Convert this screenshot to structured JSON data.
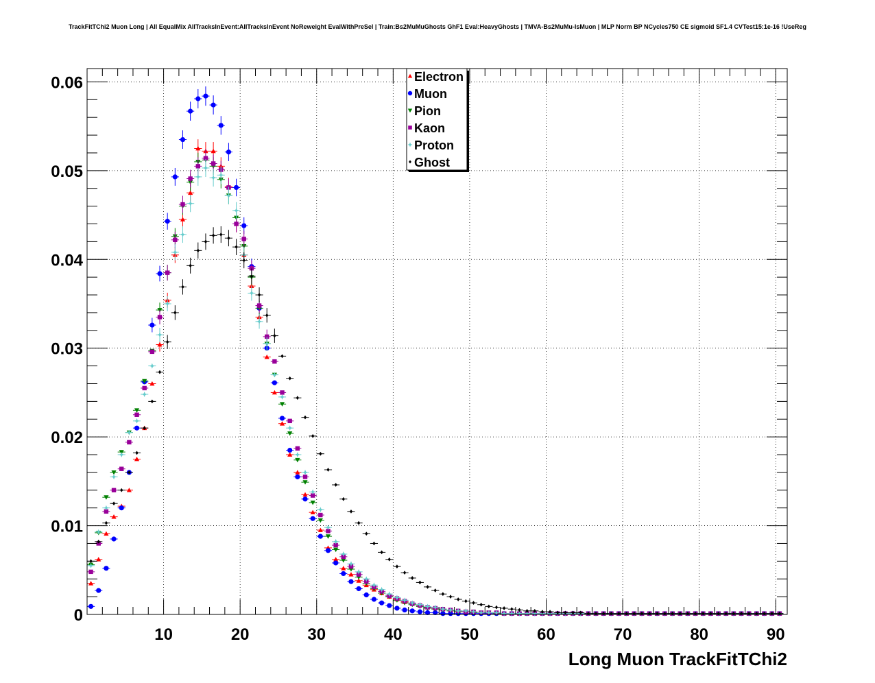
{
  "chart_data": {
    "type": "scatter",
    "title": "TrackFitTChi2 Muon Long | All EqualMix AllTracksInEvent:AllTracksInEvent NoReweight EvalWithPreSel | Train:Bs2MuMuGhosts GhF1 Eval:HeavyGhosts | TMVA-Bs2MuMu-IsMuon | MLP Norm BP NCycles750 CE sigmoid SF1.4 CVTest15:1e-16 !UseReg",
    "xlabel": "Long Muon TrackFitTChi2",
    "ylabel": "",
    "xlim": [
      0,
      91.5
    ],
    "ylim": [
      0,
      0.0615
    ],
    "xticks": [
      10,
      20,
      30,
      40,
      50,
      60,
      70,
      80,
      90
    ],
    "yticks": [
      0,
      0.01,
      0.02,
      0.03,
      0.04,
      0.05,
      0.06
    ],
    "xtick_labels": [
      "10",
      "20",
      "30",
      "40",
      "50",
      "60",
      "70",
      "80",
      "90"
    ],
    "ytick_labels": [
      "0",
      "0.01",
      "0.02",
      "0.03",
      "0.04",
      "0.05",
      "0.06"
    ],
    "grid": true,
    "legend_position": "top-center",
    "bin_width": 1,
    "series": [
      {
        "name": "Electron",
        "marker": "triangle-up",
        "color": "#ff0000",
        "values": [
          0.0035,
          0.0062,
          0.0091,
          0.011,
          0.0122,
          0.014,
          0.0175,
          0.021,
          0.026,
          0.0304,
          0.0354,
          0.0405,
          0.0445,
          0.0475,
          0.0525,
          0.0522,
          0.0522,
          0.0505,
          0.0482,
          0.044,
          0.0405,
          0.037,
          0.0335,
          0.029,
          0.025,
          0.0215,
          0.018,
          0.016,
          0.0135,
          0.0115,
          0.0095,
          0.0075,
          0.0062,
          0.0052,
          0.0045,
          0.0038,
          0.0033,
          0.0028,
          0.0024,
          0.002,
          0.0017,
          0.0014,
          0.0012,
          0.001,
          0.0008,
          0.0007,
          0.0006,
          0.0005,
          0.0004,
          0.0003,
          0.0003,
          0.0002,
          0.0002,
          0.0002,
          0.0001,
          0.0001,
          0.0001,
          0.0001,
          0.0001,
          0.0001,
          0.0001,
          0.0001,
          0.0001,
          0.0001,
          0.0001,
          0.0001,
          0.0001,
          0.0001,
          0.0001,
          0.0001,
          0.0001,
          0.0001,
          0.0001,
          0.0001,
          0.0001,
          0.0001,
          0.0001,
          0.0001,
          0.0001,
          0.0001,
          0.0001,
          0.0001,
          0.0001,
          0.0001,
          0.0001,
          0.0001,
          0.0001,
          0.0001,
          0.0001,
          0.0001,
          0.0001
        ]
      },
      {
        "name": "Muon",
        "marker": "circle",
        "color": "#0000ff",
        "values": [
          0.0009,
          0.0027,
          0.0052,
          0.0085,
          0.012,
          0.016,
          0.021,
          0.0262,
          0.0326,
          0.0384,
          0.0443,
          0.0493,
          0.0535,
          0.0567,
          0.0581,
          0.0584,
          0.0574,
          0.0551,
          0.0521,
          0.0481,
          0.0438,
          0.0392,
          0.0345,
          0.03,
          0.0261,
          0.0221,
          0.0185,
          0.0155,
          0.013,
          0.0108,
          0.0088,
          0.0072,
          0.0058,
          0.0046,
          0.0037,
          0.0029,
          0.0022,
          0.0017,
          0.0013,
          0.001,
          0.0007,
          0.0005,
          0.0004,
          0.0003,
          0.0002,
          0.0002,
          0.0001,
          0.0001,
          0.0001,
          0.0001,
          0.0001,
          0.0001,
          0.0001,
          0.0001,
          0.0001,
          0.0001,
          0.0001,
          0.0001,
          0.0001,
          0.0001,
          0.0001,
          0.0001,
          0.0001,
          0.0001,
          0.0001,
          0.0001,
          0.0001,
          0.0001,
          0.0001,
          0.0001,
          0.0001,
          0.0001,
          0.0001,
          0.0001,
          0.0001,
          0.0001,
          0.0001,
          0.0001,
          0.0001,
          0.0001,
          0.0001,
          0.0001,
          0.0001,
          0.0001,
          0.0001,
          0.0001,
          0.0001,
          0.0001,
          0.0001,
          0.0001,
          0.0001
        ]
      },
      {
        "name": "Pion",
        "marker": "triangle-down",
        "color": "#008000",
        "values": [
          0.0056,
          0.0092,
          0.0132,
          0.016,
          0.0183,
          0.0205,
          0.023,
          0.0263,
          0.0297,
          0.0343,
          0.0385,
          0.0426,
          0.046,
          0.0487,
          0.051,
          0.0512,
          0.0505,
          0.049,
          0.0472,
          0.0447,
          0.0415,
          0.038,
          0.0345,
          0.0305,
          0.027,
          0.0237,
          0.0204,
          0.0174,
          0.0149,
          0.0126,
          0.0106,
          0.0088,
          0.0073,
          0.0061,
          0.0051,
          0.0042,
          0.0035,
          0.0029,
          0.0024,
          0.002,
          0.0016,
          0.0013,
          0.0011,
          0.0009,
          0.0007,
          0.0006,
          0.0005,
          0.0004,
          0.0003,
          0.0003,
          0.0002,
          0.0002,
          0.0002,
          0.0001,
          0.0001,
          0.0001,
          0.0001,
          0.0001,
          0.0001,
          0.0001,
          0.0001,
          0.0001,
          0.0001,
          0.0001,
          0.0001,
          0.0001,
          0.0001,
          0.0001,
          0.0001,
          0.0001,
          0.0001,
          0.0001,
          0.0001,
          0.0001,
          0.0001,
          0.0001,
          0.0001,
          0.0001,
          0.0001,
          0.0001,
          0.0001,
          0.0001,
          0.0001,
          0.0001,
          0.0001,
          0.0001,
          0.0001,
          0.0001,
          0.0001,
          0.0001,
          0.0001
        ]
      },
      {
        "name": "Kaon",
        "marker": "square",
        "color": "#990099",
        "values": [
          0.0048,
          0.008,
          0.0116,
          0.014,
          0.0164,
          0.0194,
          0.0225,
          0.0255,
          0.0296,
          0.0335,
          0.0385,
          0.0422,
          0.0462,
          0.0491,
          0.0505,
          0.0514,
          0.0508,
          0.0501,
          0.0481,
          0.044,
          0.0423,
          0.039,
          0.0348,
          0.0313,
          0.0285,
          0.025,
          0.0218,
          0.0187,
          0.0155,
          0.0134,
          0.0112,
          0.0094,
          0.0078,
          0.0065,
          0.0054,
          0.0045,
          0.0037,
          0.0031,
          0.0026,
          0.0021,
          0.0018,
          0.0015,
          0.0012,
          0.001,
          0.0008,
          0.0007,
          0.0006,
          0.0005,
          0.0004,
          0.0003,
          0.0003,
          0.0002,
          0.0002,
          0.0002,
          0.0001,
          0.0001,
          0.0001,
          0.0001,
          0.0001,
          0.0001,
          0.0001,
          0.0001,
          0.0001,
          0.0001,
          0.0001,
          0.0001,
          0.0001,
          0.0001,
          0.0001,
          0.0001,
          0.0001,
          0.0001,
          0.0001,
          0.0001,
          0.0001,
          0.0001,
          0.0001,
          0.0001,
          0.0001,
          0.0001,
          0.0001,
          0.0001,
          0.0001,
          0.0001,
          0.0001,
          0.0001,
          0.0001,
          0.0001,
          0.0001,
          0.0001,
          0.0001
        ]
      },
      {
        "name": "Proton",
        "marker": "star",
        "color": "#66cccc",
        "values": [
          0.0055,
          0.0093,
          0.012,
          0.0155,
          0.018,
          0.0205,
          0.0218,
          0.0248,
          0.028,
          0.0315,
          0.035,
          0.0408,
          0.0428,
          0.0463,
          0.0493,
          0.0503,
          0.0492,
          0.0495,
          0.0472,
          0.0455,
          0.0405,
          0.0362,
          0.033,
          0.0305,
          0.027,
          0.0245,
          0.021,
          0.018,
          0.016,
          0.0138,
          0.0118,
          0.0098,
          0.0082,
          0.0068,
          0.0057,
          0.0048,
          0.004,
          0.0033,
          0.0028,
          0.0023,
          0.0019,
          0.0016,
          0.0013,
          0.0011,
          0.0009,
          0.0008,
          0.0006,
          0.0005,
          0.0004,
          0.0004,
          0.0003,
          0.0002,
          0.0002,
          0.0002,
          0.0001,
          0.0001,
          0.0001,
          0.0001,
          0.0001,
          0.0001,
          0.0001,
          0.0001,
          0.0001,
          0.0001,
          0.0001,
          0.0001,
          0.0001,
          0.0001,
          0.0001,
          0.0001,
          0.0001,
          0.0001,
          0.0001,
          0.0001,
          0.0001,
          0.0001,
          0.0001,
          0.0001,
          0.0001,
          0.0001,
          0.0001,
          0.0001,
          0.0001,
          0.0001,
          0.0001,
          0.0001,
          0.0001,
          0.0001,
          0.0001,
          0.0001,
          0.0001
        ]
      },
      {
        "name": "Ghost",
        "marker": "diamond",
        "color": "#000000",
        "values": [
          0.006,
          0.0082,
          0.0103,
          0.0125,
          0.014,
          0.016,
          0.0182,
          0.021,
          0.024,
          0.0273,
          0.0307,
          0.034,
          0.0369,
          0.0393,
          0.041,
          0.042,
          0.0427,
          0.0428,
          0.0424,
          0.0414,
          0.0399,
          0.0381,
          0.036,
          0.0337,
          0.0314,
          0.0291,
          0.0266,
          0.0244,
          0.0222,
          0.0201,
          0.0181,
          0.0163,
          0.0146,
          0.013,
          0.0116,
          0.0103,
          0.0091,
          0.008,
          0.007,
          0.0062,
          0.0054,
          0.0047,
          0.0041,
          0.0036,
          0.0031,
          0.0027,
          0.0023,
          0.002,
          0.0017,
          0.0015,
          0.0013,
          0.0011,
          0.0009,
          0.0008,
          0.0007,
          0.0006,
          0.0005,
          0.0004,
          0.0004,
          0.0003,
          0.0003,
          0.0002,
          0.0002,
          0.0002,
          0.0002,
          0.0001,
          0.0001,
          0.0001,
          0.0001,
          0.0001,
          0.0001,
          0.0001,
          0.0001,
          0.0001,
          0.0001,
          0.0001,
          0.0001,
          0.0001,
          0.0001,
          0.0001,
          0.0001,
          0.0001,
          0.0001,
          0.0001,
          0.0001,
          0.0001,
          0.0001,
          0.0001,
          0.0001,
          0.0001,
          0.0001
        ]
      }
    ]
  }
}
